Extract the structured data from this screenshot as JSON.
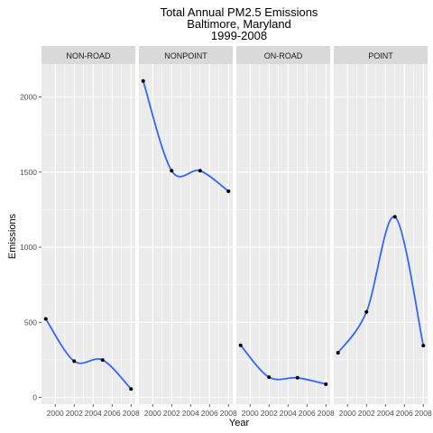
{
  "chart_data": {
    "type": "line",
    "title_lines": [
      "Total Annual PM2.5 Emissions",
      "Baltimore, Maryland",
      "1999-2008"
    ],
    "xlabel": "Year",
    "ylabel": "Emissions",
    "x": [
      1999,
      2002,
      2005,
      2008
    ],
    "xticks": [
      2000,
      2002,
      2004,
      2006,
      2008
    ],
    "xlim": [
      1998.55,
      2008.45
    ],
    "yticks": [
      0,
      500,
      1000,
      1500,
      2000
    ],
    "ylim": [
      -45,
      2220
    ],
    "facet_layout": "1 row, 4 columns",
    "grid": true,
    "colors": {
      "panel_background": "#ebebeb",
      "strip_background": "#d9d9d9",
      "grid_major": "#ffffff",
      "line": "#3366ff",
      "point": "#000000"
    },
    "facets": [
      {
        "label": "NON-ROAD",
        "values": [
          522.94,
          240.85,
          248.93,
          55.82
        ]
      },
      {
        "label": "NONPOINT",
        "values": [
          2107.63,
          1509.5,
          1509.5,
          1373.21
        ]
      },
      {
        "label": "ON-ROAD",
        "values": [
          346.82,
          134.31,
          130.43,
          88.28
        ]
      },
      {
        "label": "POINT",
        "values": [
          296.8,
          569.26,
          1202.49,
          344.98
        ]
      }
    ]
  }
}
